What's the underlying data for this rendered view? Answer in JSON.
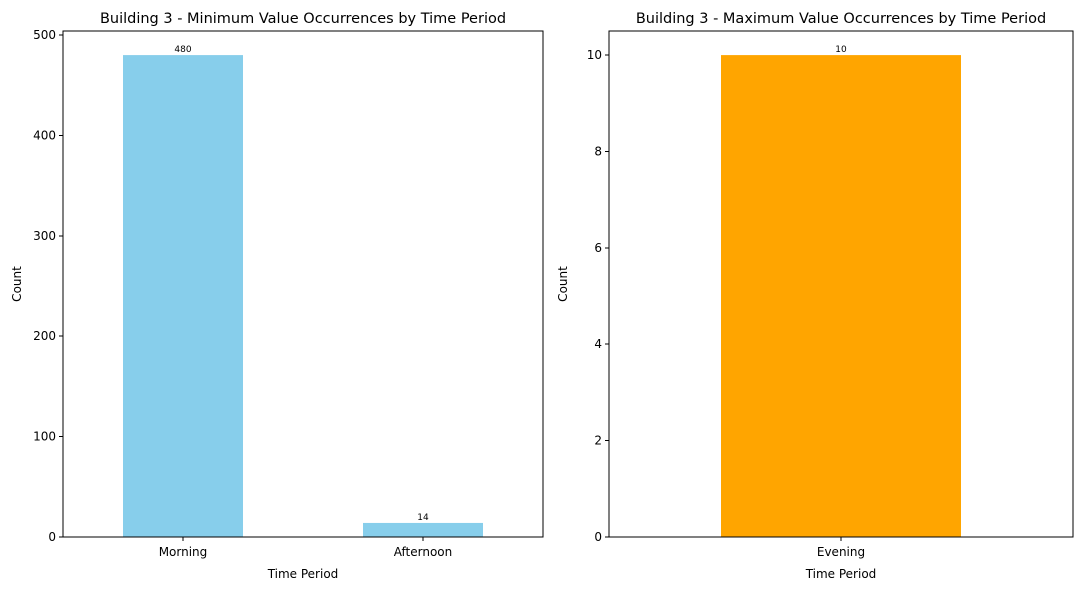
{
  "chart_data": [
    {
      "type": "bar",
      "title": "Building 3 - Minimum Value Occurrences by Time Period",
      "xlabel": "Time Period",
      "ylabel": "Count",
      "categories": [
        "Morning",
        "Afternoon"
      ],
      "values": [
        480,
        14
      ],
      "value_labels": [
        "480",
        "14"
      ],
      "ylim": [
        0,
        504
      ],
      "yticks": [
        0,
        100,
        200,
        300,
        400,
        500
      ],
      "color": "#87ceeb",
      "grid": false
    },
    {
      "type": "bar",
      "title": "Building 3 - Maximum Value Occurrences by Time Period",
      "xlabel": "Time Period",
      "ylabel": "Count",
      "categories": [
        "Evening"
      ],
      "values": [
        10
      ],
      "value_labels": [
        "10"
      ],
      "ylim": [
        0,
        10.5
      ],
      "yticks": [
        0,
        2,
        4,
        6,
        8,
        10
      ],
      "color": "#ffa500",
      "grid": false
    }
  ]
}
